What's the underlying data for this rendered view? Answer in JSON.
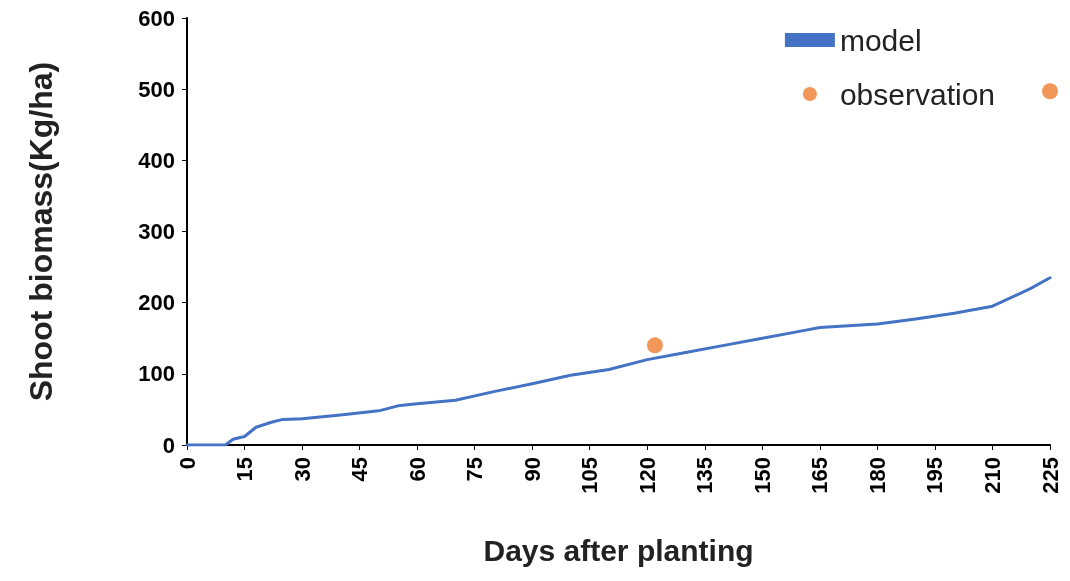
{
  "chart_data": {
    "type": "line",
    "xlabel": "Days after planting",
    "ylabel": "Shoot biomass(Kg/ha)",
    "xlim": [
      0,
      225
    ],
    "xticks": [
      0,
      15,
      30,
      45,
      60,
      75,
      90,
      105,
      120,
      135,
      150,
      165,
      180,
      195,
      210,
      225
    ],
    "ylim": [
      0,
      600
    ],
    "yticks": [
      0,
      100,
      200,
      300,
      400,
      500,
      600
    ],
    "grid": false,
    "legend": "top right",
    "series": [
      {
        "name": "model",
        "type": "line",
        "color": "#4472c4",
        "marker": "none",
        "line_style": "solid",
        "x": [
          0,
          10,
          12,
          15,
          18,
          22,
          25,
          30,
          40,
          50,
          55,
          60,
          70,
          80,
          90,
          100,
          110,
          120,
          130,
          140,
          150,
          160,
          165,
          180,
          190,
          200,
          210,
          220,
          225
        ],
        "values": [
          0,
          0,
          8,
          12,
          25,
          32,
          36,
          37,
          42,
          48,
          55,
          58,
          63,
          75,
          86,
          98,
          106,
          120,
          130,
          140,
          150,
          160,
          165,
          170,
          177,
          185,
          195,
          220,
          235
        ]
      },
      {
        "name": "observation",
        "type": "scatter",
        "color": "#ed7d31",
        "marker": "circle",
        "x": [
          122,
          225
        ],
        "values": [
          140,
          497
        ]
      }
    ]
  }
}
